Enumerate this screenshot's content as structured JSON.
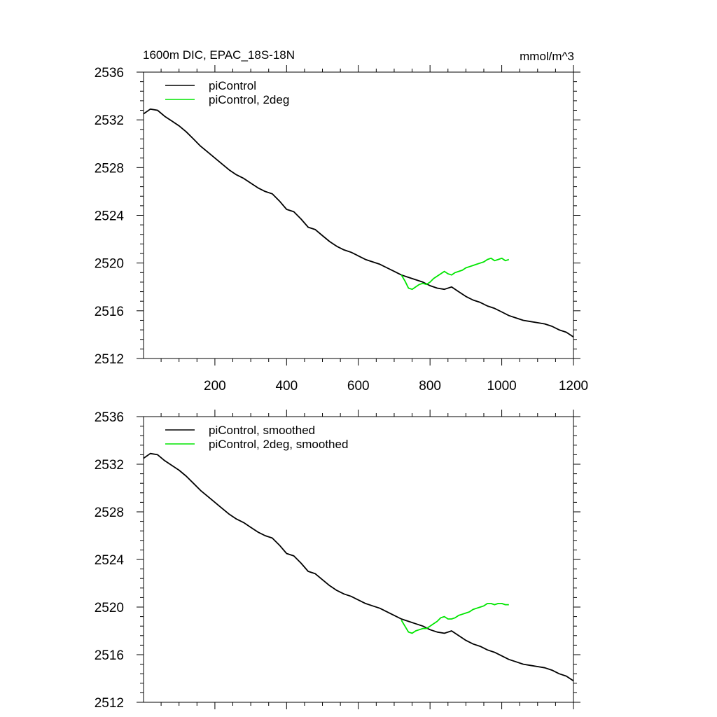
{
  "header": {
    "title": "1600m DIC, EPAC_18S-18N",
    "units": "mmol/m^3"
  },
  "chart_data": [
    {
      "type": "line",
      "xlim": [
        1,
        1200
      ],
      "ylim": [
        2512,
        2536
      ],
      "xticks": [
        200,
        400,
        600,
        800,
        1000,
        1200
      ],
      "yticks": [
        2512,
        2516,
        2520,
        2524,
        2528,
        2532,
        2536
      ],
      "show_xtick_labels": true,
      "grid": false,
      "legend_position": "top-left",
      "series": [
        {
          "name": "piControl",
          "color": "#000000",
          "x": [
            1,
            20,
            40,
            60,
            80,
            100,
            120,
            140,
            160,
            180,
            200,
            220,
            240,
            260,
            280,
            300,
            320,
            340,
            360,
            380,
            400,
            420,
            440,
            460,
            480,
            500,
            520,
            540,
            560,
            580,
            600,
            620,
            640,
            660,
            680,
            700,
            720,
            740,
            760,
            780,
            800,
            820,
            840,
            860,
            880,
            900,
            920,
            940,
            960,
            980,
            1000,
            1020,
            1040,
            1060,
            1080,
            1100,
            1120,
            1140,
            1160,
            1180,
            1200
          ],
          "y": [
            2532.5,
            2532.9,
            2532.8,
            2532.3,
            2531.9,
            2531.5,
            2531.0,
            2530.4,
            2529.8,
            2529.3,
            2528.8,
            2528.3,
            2527.8,
            2527.4,
            2527.1,
            2526.7,
            2526.3,
            2526.0,
            2525.8,
            2525.2,
            2524.5,
            2524.3,
            2523.7,
            2523.0,
            2522.8,
            2522.3,
            2521.8,
            2521.4,
            2521.1,
            2520.9,
            2520.6,
            2520.3,
            2520.1,
            2519.9,
            2519.6,
            2519.3,
            2519.0,
            2518.8,
            2518.6,
            2518.4,
            2518.1,
            2517.9,
            2517.8,
            2518.0,
            2517.6,
            2517.2,
            2516.9,
            2516.7,
            2516.4,
            2516.2,
            2515.9,
            2515.6,
            2515.4,
            2515.2,
            2515.1,
            2515.0,
            2514.9,
            2514.7,
            2514.4,
            2514.2,
            2513.8
          ]
        },
        {
          "name": "piControl, 2deg",
          "color": "#00e600",
          "x": [
            720,
            730,
            740,
            750,
            760,
            770,
            780,
            790,
            800,
            810,
            820,
            830,
            840,
            850,
            860,
            870,
            880,
            890,
            900,
            910,
            920,
            930,
            940,
            950,
            960,
            970,
            980,
            990,
            1000,
            1010,
            1020
          ],
          "y": [
            2519.0,
            2518.5,
            2517.9,
            2517.8,
            2518.0,
            2518.2,
            2518.3,
            2518.2,
            2518.4,
            2518.7,
            2518.9,
            2519.1,
            2519.3,
            2519.1,
            2519.0,
            2519.2,
            2519.3,
            2519.4,
            2519.6,
            2519.7,
            2519.8,
            2519.9,
            2520.0,
            2520.1,
            2520.3,
            2520.4,
            2520.2,
            2520.3,
            2520.4,
            2520.2,
            2520.3
          ]
        }
      ]
    },
    {
      "type": "line",
      "xlim": [
        1,
        1200
      ],
      "ylim": [
        2512,
        2536
      ],
      "xticks": [
        200,
        400,
        600,
        800,
        1000,
        1200
      ],
      "yticks": [
        2512,
        2516,
        2520,
        2524,
        2528,
        2532,
        2536
      ],
      "show_xtick_labels": false,
      "grid": false,
      "legend_position": "top-left",
      "series": [
        {
          "name": "piControl, smoothed",
          "color": "#000000",
          "x": [
            1,
            20,
            40,
            60,
            80,
            100,
            120,
            140,
            160,
            180,
            200,
            220,
            240,
            260,
            280,
            300,
            320,
            340,
            360,
            380,
            400,
            420,
            440,
            460,
            480,
            500,
            520,
            540,
            560,
            580,
            600,
            620,
            640,
            660,
            680,
            700,
            720,
            740,
            760,
            780,
            800,
            820,
            840,
            860,
            880,
            900,
            920,
            940,
            960,
            980,
            1000,
            1020,
            1040,
            1060,
            1080,
            1100,
            1120,
            1140,
            1160,
            1180,
            1200
          ],
          "y": [
            2532.5,
            2532.9,
            2532.8,
            2532.3,
            2531.9,
            2531.5,
            2531.0,
            2530.4,
            2529.8,
            2529.3,
            2528.8,
            2528.3,
            2527.8,
            2527.4,
            2527.1,
            2526.7,
            2526.3,
            2526.0,
            2525.8,
            2525.2,
            2524.5,
            2524.3,
            2523.7,
            2523.0,
            2522.8,
            2522.3,
            2521.8,
            2521.4,
            2521.1,
            2520.9,
            2520.6,
            2520.3,
            2520.1,
            2519.9,
            2519.6,
            2519.3,
            2519.0,
            2518.8,
            2518.6,
            2518.4,
            2518.1,
            2517.9,
            2517.8,
            2518.0,
            2517.6,
            2517.2,
            2516.9,
            2516.7,
            2516.4,
            2516.2,
            2515.9,
            2515.6,
            2515.4,
            2515.2,
            2515.1,
            2515.0,
            2514.9,
            2514.7,
            2514.4,
            2514.2,
            2513.8
          ]
        },
        {
          "name": "piControl, 2deg, smoothed",
          "color": "#00e600",
          "x": [
            720,
            730,
            740,
            750,
            760,
            770,
            780,
            790,
            800,
            810,
            820,
            830,
            840,
            850,
            860,
            870,
            880,
            890,
            900,
            910,
            920,
            930,
            940,
            950,
            960,
            970,
            980,
            990,
            1000,
            1010,
            1020
          ],
          "y": [
            2518.9,
            2518.4,
            2517.9,
            2517.8,
            2518.0,
            2518.1,
            2518.2,
            2518.2,
            2518.4,
            2518.6,
            2518.8,
            2519.1,
            2519.2,
            2519.0,
            2519.0,
            2519.1,
            2519.3,
            2519.4,
            2519.5,
            2519.6,
            2519.8,
            2519.9,
            2520.0,
            2520.1,
            2520.3,
            2520.3,
            2520.2,
            2520.3,
            2520.3,
            2520.2,
            2520.2
          ]
        }
      ]
    }
  ]
}
